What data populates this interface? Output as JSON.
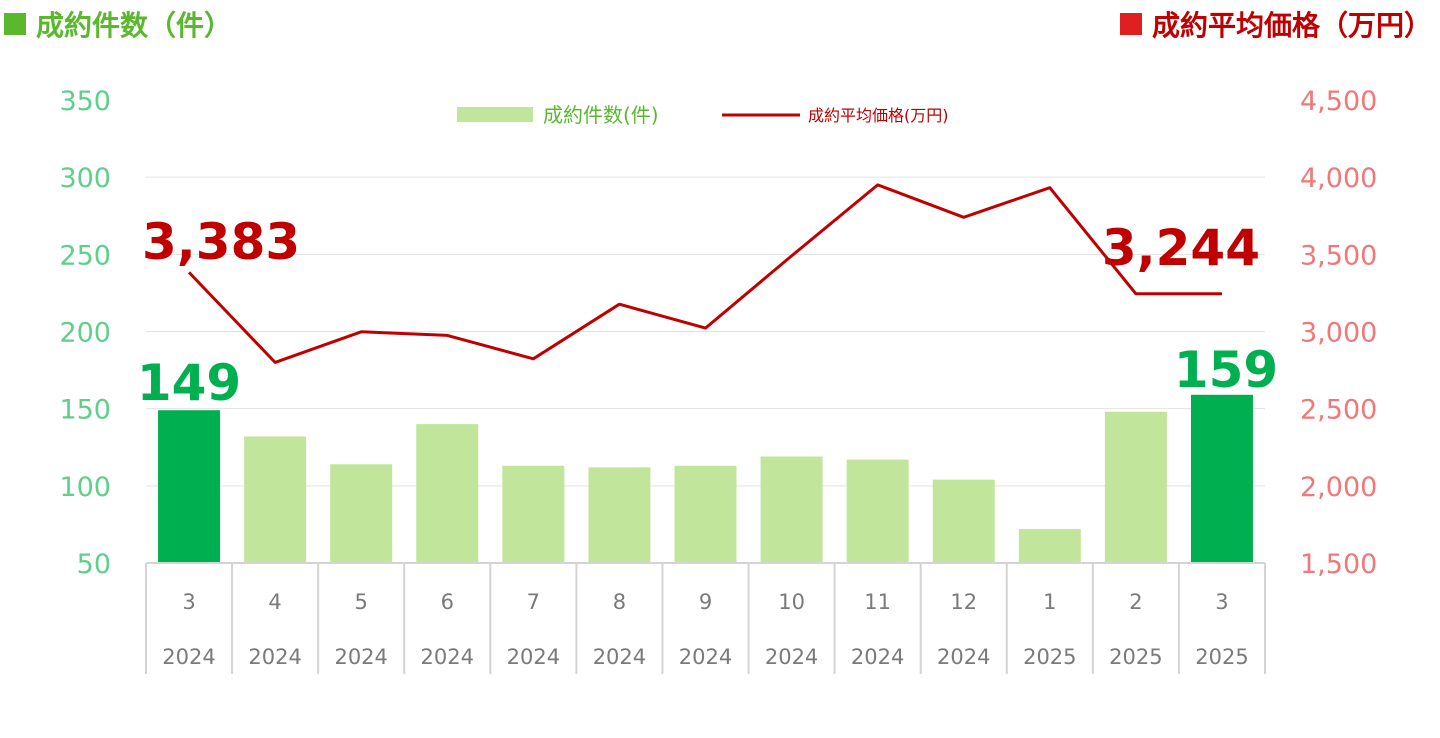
{
  "titles": {
    "left": "成約件数（件）",
    "right": "成約平均価格（万円）"
  },
  "colors": {
    "bar": "#c2e59c",
    "bar_highlight": "#00b050",
    "line": "#c00000",
    "left_axis": "#5fcf8a",
    "right_axis": "#f07878",
    "left_title": "#5bb82e",
    "right_title": "#c00000"
  },
  "chart_data": {
    "type": "bar",
    "categories": [
      {
        "month": "3",
        "year": "2024"
      },
      {
        "month": "4",
        "year": "2024"
      },
      {
        "month": "5",
        "year": "2024"
      },
      {
        "month": "6",
        "year": "2024"
      },
      {
        "month": "7",
        "year": "2024"
      },
      {
        "month": "8",
        "year": "2024"
      },
      {
        "month": "9",
        "year": "2024"
      },
      {
        "month": "10",
        "year": "2024"
      },
      {
        "month": "11",
        "year": "2024"
      },
      {
        "month": "12",
        "year": "2024"
      },
      {
        "month": "1",
        "year": "2025"
      },
      {
        "month": "2",
        "year": "2025"
      },
      {
        "month": "3",
        "year": "2025"
      }
    ],
    "series": [
      {
        "name": "成約件数(件)",
        "type": "bar",
        "axis": "left",
        "values": [
          149,
          132,
          114,
          140,
          113,
          112,
          113,
          119,
          117,
          104,
          72,
          148,
          159
        ],
        "highlight_indices": [
          0,
          12
        ]
      },
      {
        "name": "成約平均価格(万円)",
        "type": "line",
        "axis": "right",
        "values": [
          3383,
          2800,
          2998,
          2975,
          2823,
          3177,
          3022,
          3490,
          3950,
          3740,
          3932,
          3244,
          3244
        ]
      }
    ],
    "left_axis": {
      "min": 50,
      "max": 350,
      "ticks": [
        "350",
        "300",
        "250",
        "200",
        "150",
        "100",
        "50"
      ]
    },
    "right_axis": {
      "min": 1500,
      "max": 4500,
      "ticks": [
        "4,500",
        "4,000",
        "3,500",
        "3,000",
        "2,500",
        "2,000",
        "1,500"
      ]
    },
    "grid": true,
    "legend_position": "top-center",
    "annotations": {
      "price_first": "3,383",
      "price_last": "3,244",
      "count_first": "149",
      "count_last": "159"
    }
  }
}
